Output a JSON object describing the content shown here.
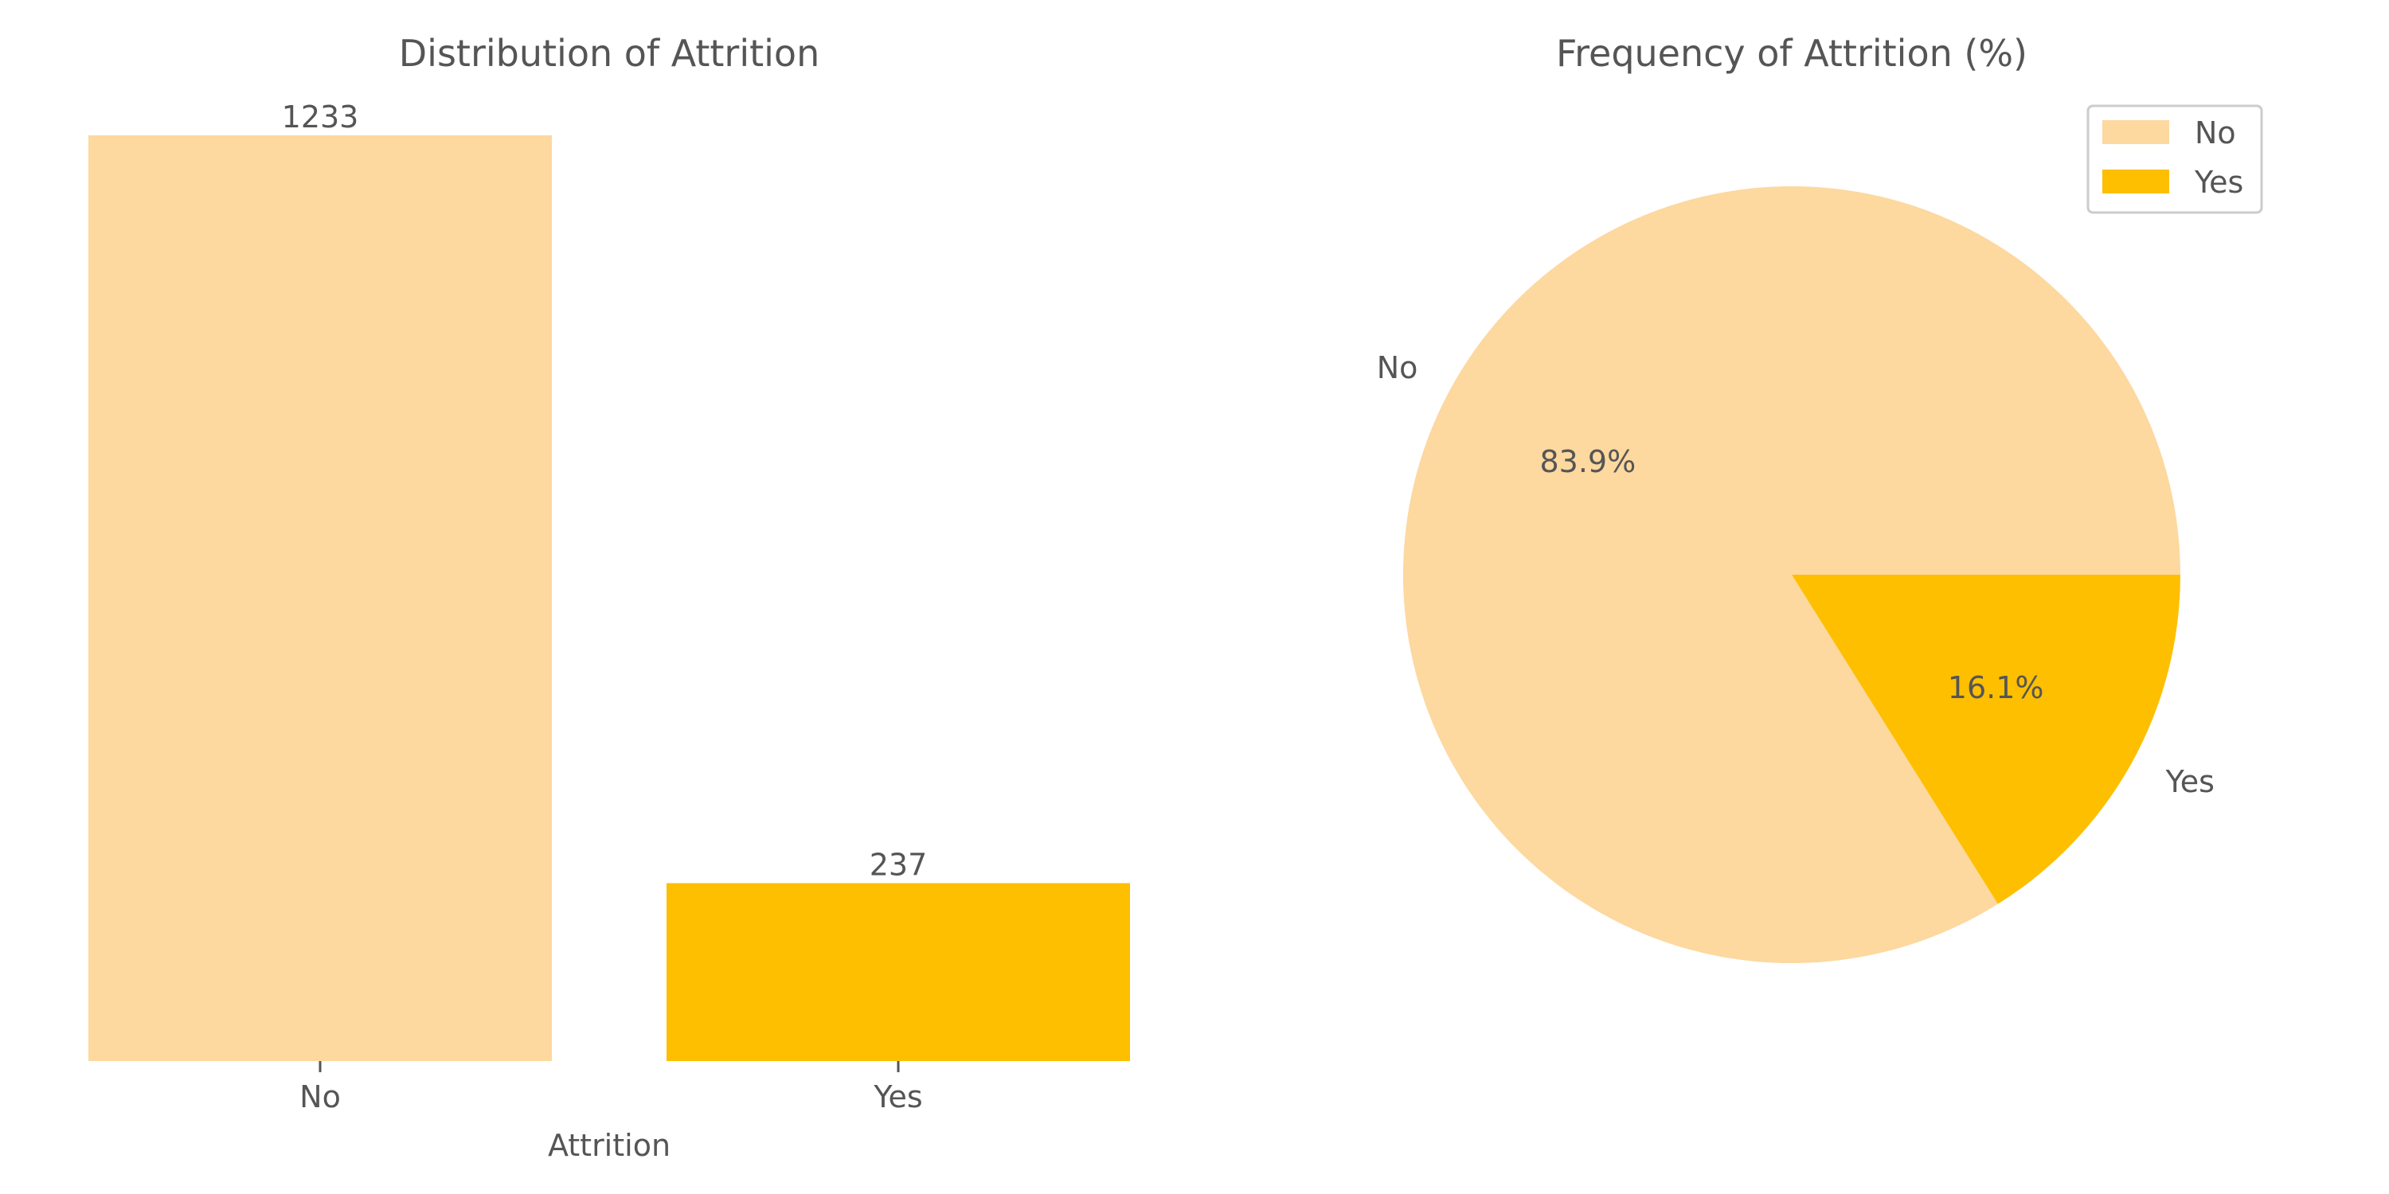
{
  "chart_data": [
    {
      "type": "bar",
      "title": "Distribution of Attrition",
      "xlabel": "Attrition",
      "ylabel": "",
      "categories": [
        "No",
        "Yes"
      ],
      "values": [
        1233,
        237
      ],
      "data_labels": [
        "1233",
        "237"
      ],
      "colors": [
        "#fdd89f",
        "#fdbf00"
      ],
      "ylim": [
        0,
        1233
      ],
      "grid": false,
      "y_axis_visible": false
    },
    {
      "type": "pie",
      "title": "Frequency of Attrition (%)",
      "categories": [
        "No",
        "Yes"
      ],
      "values": [
        83.9,
        16.1
      ],
      "pct_labels": [
        "83.9%",
        "16.1%"
      ],
      "colors": [
        "#fdd89f",
        "#fdbf00"
      ],
      "legend": {
        "placement": "top-right",
        "entries": [
          "No",
          "Yes"
        ]
      }
    }
  ]
}
